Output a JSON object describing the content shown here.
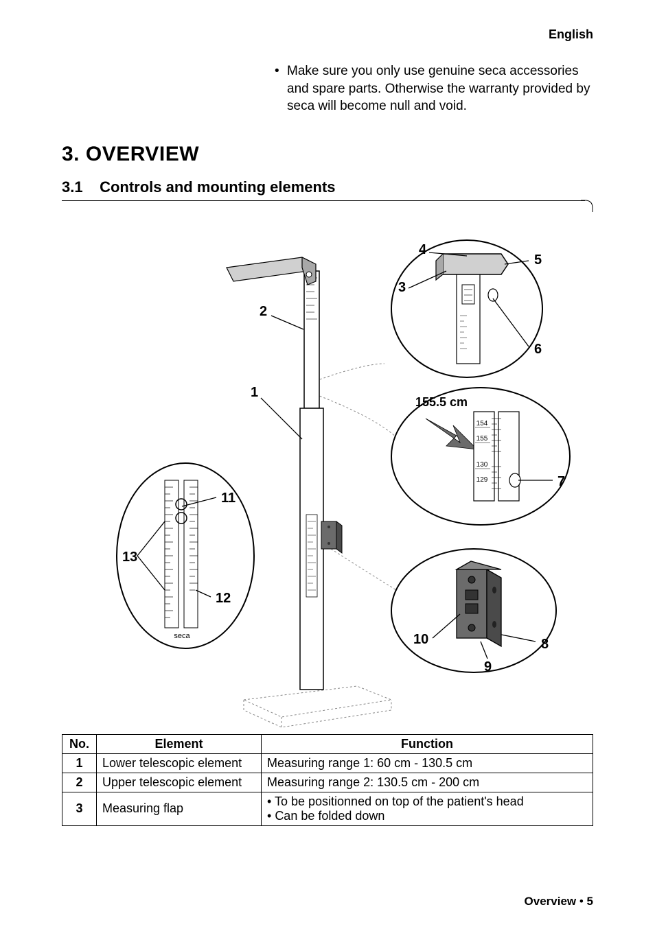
{
  "header": {
    "language": "English"
  },
  "note": {
    "text": "Make sure you only use genuine seca accessories and spare parts. Otherwise the warranty provided by seca will become null and void."
  },
  "section": {
    "number": "3.",
    "title": "OVERVIEW",
    "sub_number": "3.1",
    "sub_title": "Controls and mounting elements"
  },
  "diagram": {
    "measurement_label": "155.5 cm",
    "scale_labels": [
      "154",
      "155",
      "130",
      "129"
    ],
    "brand": "seca",
    "callouts": [
      "1",
      "2",
      "3",
      "4",
      "5",
      "6",
      "7",
      "8",
      "9",
      "10",
      "11",
      "12",
      "13"
    ]
  },
  "table": {
    "headers": [
      "No.",
      "Element",
      "Function"
    ],
    "rows": [
      {
        "no": "1",
        "element": "Lower telescopic element",
        "function": [
          "Measuring range 1: 60 cm - 130.5 cm"
        ]
      },
      {
        "no": "2",
        "element": "Upper  telescopic element",
        "function": [
          "Measuring range 2: 130.5 cm - 200 cm"
        ]
      },
      {
        "no": "3",
        "element": "Measuring flap",
        "function": [
          "To be positionned on top of the patient's head",
          "Can be folded down"
        ]
      }
    ]
  },
  "footer": {
    "section": "Overview",
    "sep": " • ",
    "page": "5"
  },
  "colors": {
    "text": "#000000",
    "bg": "#ffffff",
    "light_grey": "#d0d0d0",
    "mid_grey": "#a8a8a8",
    "dark_grey": "#6b6b6b",
    "dash": "#888888"
  }
}
